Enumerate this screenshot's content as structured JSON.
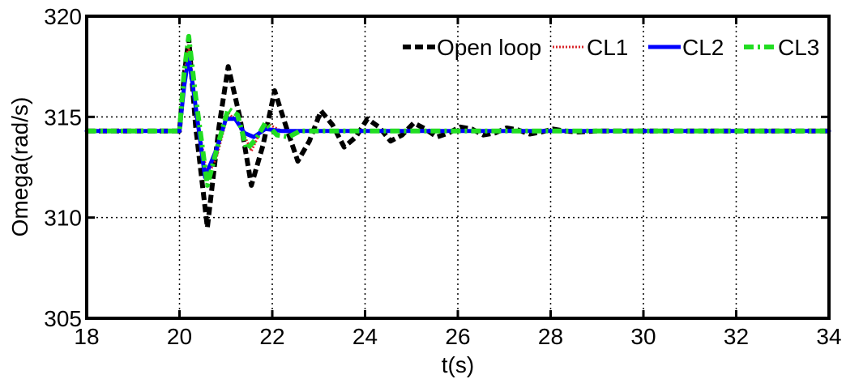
{
  "chart_data": {
    "type": "line",
    "title": "",
    "xlabel": "t(s)",
    "ylabel": "Omega(rad/s)",
    "xlim": [
      18,
      34
    ],
    "ylim": [
      305,
      320
    ],
    "x_ticks": [
      18,
      20,
      22,
      24,
      26,
      28,
      30,
      32,
      34
    ],
    "x_tick_labels": [
      "18",
      "20",
      "22",
      "24",
      "26",
      "28",
      "30",
      "32",
      "34"
    ],
    "y_ticks": [
      305,
      310,
      315,
      320
    ],
    "y_tick_labels": [
      "305",
      "310",
      "315",
      "320"
    ],
    "grid": true,
    "legend_position": "top-right",
    "series": [
      {
        "name": "Open loop",
        "color": "#000000",
        "style": "dashed",
        "x": [
          18,
          20,
          20.1,
          20.2,
          20.35,
          20.6,
          20.85,
          21.05,
          21.3,
          21.55,
          21.8,
          22.05,
          22.3,
          22.55,
          22.8,
          23.05,
          23.3,
          23.55,
          23.8,
          24.05,
          24.3,
          24.55,
          24.8,
          25.05,
          25.3,
          25.55,
          25.8,
          26.05,
          26.3,
          26.55,
          26.8,
          27.05,
          27.3,
          27.55,
          27.8,
          28.05,
          28.3,
          28.6,
          29,
          34
        ],
        "y": [
          314.3,
          314.3,
          317.0,
          318.9,
          314.5,
          309.5,
          314.5,
          317.5,
          315.0,
          311.6,
          313.6,
          316.3,
          314.5,
          312.8,
          313.8,
          315.3,
          314.6,
          313.5,
          314.0,
          314.9,
          314.5,
          313.8,
          314.1,
          314.7,
          314.4,
          314.0,
          314.2,
          314.5,
          314.4,
          314.1,
          314.2,
          314.45,
          314.35,
          314.15,
          314.25,
          314.4,
          314.3,
          314.25,
          314.3,
          314.3
        ]
      },
      {
        "name": "CL1",
        "color": "#d9262b",
        "style": "dotted",
        "x": [
          18,
          20,
          20.1,
          20.2,
          20.4,
          20.6,
          20.8,
          21.05,
          21.3,
          21.55,
          21.75,
          21.95,
          22.2,
          22.5,
          34
        ],
        "y": [
          314.3,
          314.3,
          317.0,
          318.6,
          314.8,
          312.0,
          313.0,
          315.2,
          314.6,
          313.3,
          314.3,
          314.6,
          314.3,
          314.3,
          314.3
        ]
      },
      {
        "name": "CL2",
        "color": "#0000ff",
        "style": "solid",
        "x": [
          18,
          20,
          20.1,
          20.2,
          20.35,
          20.55,
          20.8,
          21.0,
          21.2,
          21.4,
          21.6,
          21.85,
          22.2,
          34
        ],
        "y": [
          314.3,
          314.3,
          316.5,
          318.0,
          315.5,
          312.0,
          313.4,
          314.9,
          314.9,
          314.2,
          314.0,
          314.4,
          314.3,
          314.3
        ]
      },
      {
        "name": "CL3",
        "color": "#22dd22",
        "style": "dashdot",
        "x": [
          18,
          20,
          20.1,
          20.2,
          20.35,
          20.6,
          20.85,
          21.05,
          21.25,
          21.45,
          21.65,
          21.85,
          22.1,
          22.35,
          22.6,
          34
        ],
        "y": [
          314.3,
          314.3,
          317.2,
          319.0,
          316.0,
          311.6,
          313.8,
          315.4,
          315.1,
          313.4,
          313.9,
          314.7,
          314.1,
          314.0,
          314.3,
          314.3
        ]
      }
    ]
  }
}
